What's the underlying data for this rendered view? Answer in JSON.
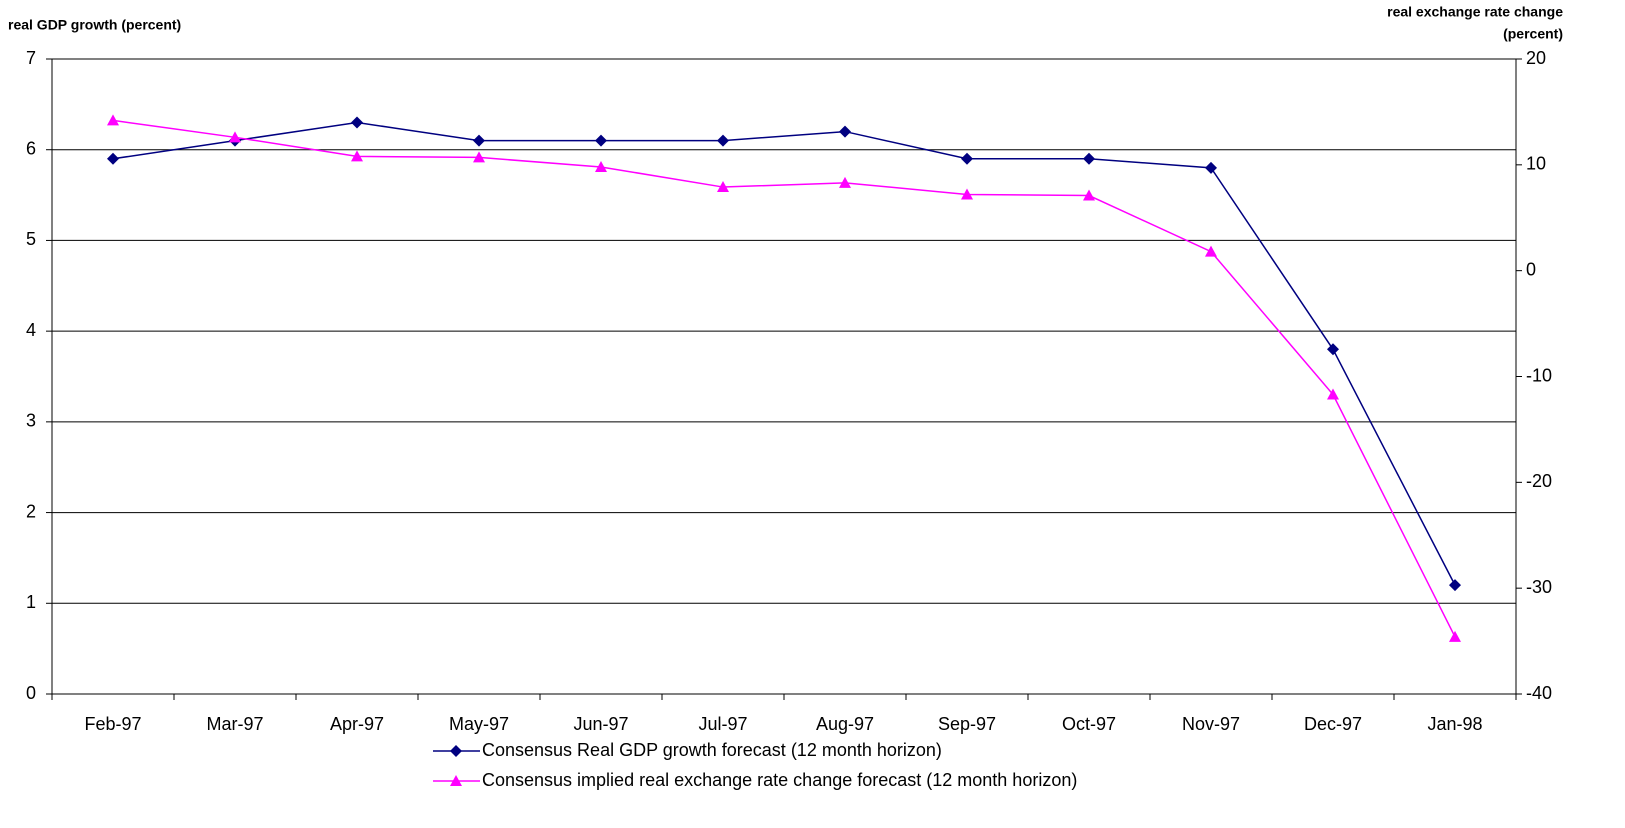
{
  "chart_data": {
    "type": "line",
    "ylabel": "real GDP growth (percent)",
    "y2label": [
      "real exchange rate change",
      "(percent)"
    ],
    "categories": [
      "Feb-97",
      "Mar-97",
      "Apr-97",
      "May-97",
      "Jun-97",
      "Jul-97",
      "Aug-97",
      "Sep-97",
      "Oct-97",
      "Nov-97",
      "Dec-97",
      "Jan-98"
    ],
    "series": [
      {
        "name": "Consensus Real GDP growth forecast (12 month horizon)",
        "color": "#000080",
        "marker": "diamond",
        "values": [
          5.9,
          6.1,
          6.3,
          6.1,
          6.1,
          6.1,
          6.2,
          5.9,
          5.9,
          5.8,
          3.8,
          1.2
        ]
      },
      {
        "name": "Consensus implied real exchange rate change forecast (12 month horizon)",
        "color": "#ff00ff",
        "marker": "triangle",
        "axis": "y2",
        "values": [
          14.2,
          12.6,
          10.8,
          10.7,
          9.8,
          7.9,
          8.3,
          7.2,
          7.1,
          1.8,
          -11.7,
          -34.6
        ]
      }
    ],
    "ylim": [
      0,
      7
    ],
    "yticks": [
      0,
      1,
      2,
      3,
      4,
      5,
      6,
      7
    ],
    "y2lim": [
      -40,
      20
    ],
    "y2ticks": [
      -40,
      -30,
      -20,
      -10,
      0,
      10,
      20
    ],
    "grid": true,
    "legend": "bottom"
  }
}
